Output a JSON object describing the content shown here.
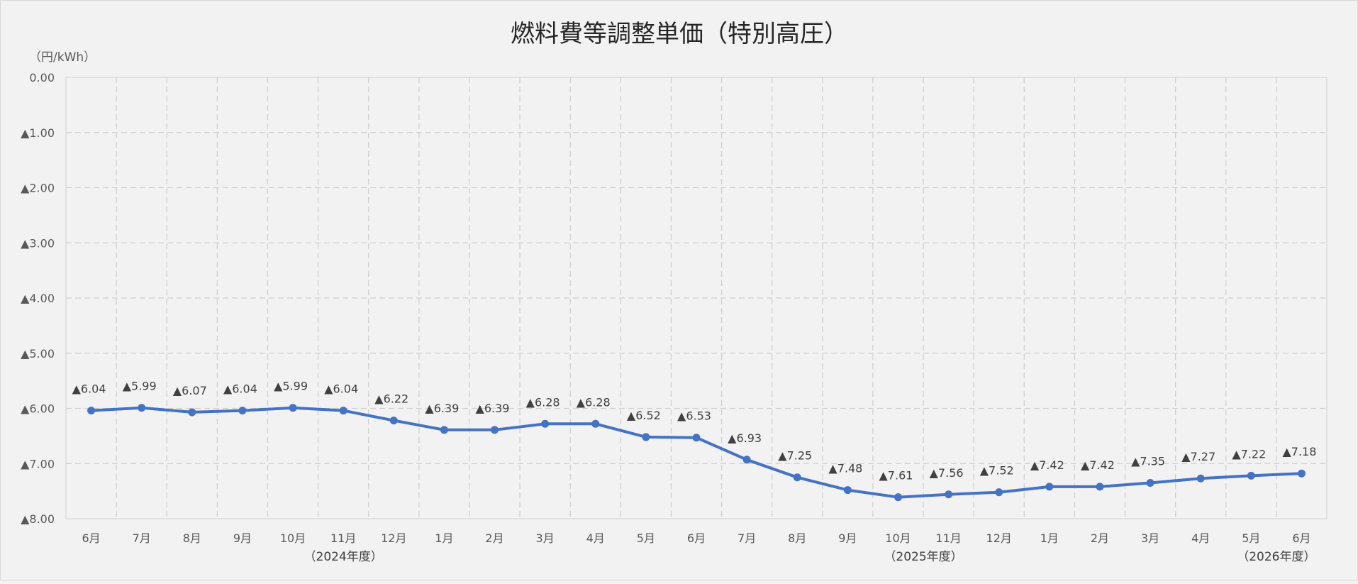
{
  "chart_data": {
    "type": "line",
    "title": "燃料費等調整単価（特別高圧）",
    "ylabel": "（円/kWh）",
    "xlabel": "",
    "ylim": [
      -8.0,
      0.0
    ],
    "yticks": [
      "0.00",
      "▲1.00",
      "▲2.00",
      "▲3.00",
      "▲4.00",
      "▲5.00",
      "▲6.00",
      "▲7.00",
      "▲8.00"
    ],
    "categories": [
      "6月",
      "7月",
      "8月",
      "9月",
      "10月",
      "11月",
      "12月",
      "1月",
      "2月",
      "3月",
      "4月",
      "5月",
      "6月",
      "7月",
      "8月",
      "9月",
      "10月",
      "11月",
      "12月",
      "1月",
      "2月",
      "3月",
      "4月",
      "5月",
      "6月"
    ],
    "groups": [
      {
        "label": "（2024年度）",
        "start": 0,
        "end": 10
      },
      {
        "label": "（2025年度）",
        "start": 10,
        "end": 23
      },
      {
        "label": "（2026年度）",
        "start": 23,
        "end": 24
      }
    ],
    "series": [
      {
        "values": [
          -6.04,
          -5.99,
          -6.07,
          -6.04,
          -5.99,
          -6.04,
          -6.22,
          -6.39,
          -6.39,
          -6.28,
          -6.28,
          -6.52,
          -6.53,
          -6.93,
          -7.25,
          -7.48,
          -7.61,
          -7.56,
          -7.52,
          -7.42,
          -7.42,
          -7.35,
          -7.27,
          -7.22,
          -7.18
        ],
        "labels": [
          "▲6.04",
          "▲5.99",
          "▲6.07",
          "▲6.04",
          "▲5.99",
          "▲6.04",
          "▲6.22",
          "▲6.39",
          "▲6.39",
          "▲6.28",
          "▲6.28",
          "▲6.52",
          "▲6.53",
          "▲6.93",
          "▲7.25",
          "▲7.48",
          "▲7.61",
          "▲7.56",
          "▲7.52",
          "▲7.42",
          "▲7.42",
          "▲7.35",
          "▲7.27",
          "▲7.22",
          "▲7.18"
        ],
        "color": "#4472c4"
      }
    ],
    "grid": true,
    "legend": "none"
  }
}
